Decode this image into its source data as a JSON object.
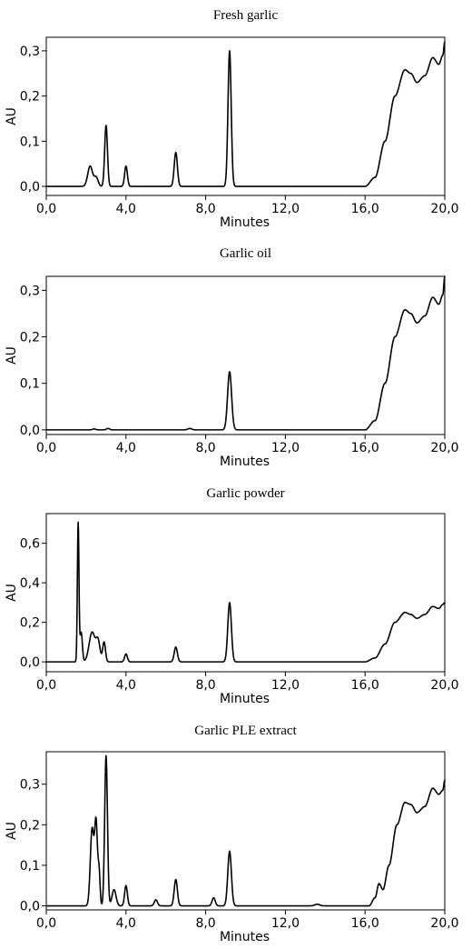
{
  "chart_data": [
    {
      "type": "line",
      "title": "Fresh garlic",
      "xlabel": "Minutes",
      "ylabel": "AU",
      "xlim": [
        0,
        20
      ],
      "ylim": [
        -0.02,
        0.33
      ],
      "xticks": [
        0,
        4,
        8,
        12,
        16,
        20
      ],
      "xtick_labels": [
        "0,0",
        "4,0",
        "8,0",
        "12,0",
        "16,0",
        "20,0"
      ],
      "yticks": [
        0,
        0.1,
        0.2,
        0.3
      ],
      "ytick_labels": [
        "0,0",
        "0,1",
        "0,2",
        "0,3"
      ],
      "grid": false,
      "baseline": 0,
      "peaks": [
        {
          "t": 2.2,
          "h": 0.045,
          "w": 0.12
        },
        {
          "t": 2.5,
          "h": 0.02,
          "w": 0.1
        },
        {
          "t": 3.0,
          "h": 0.135,
          "w": 0.07
        },
        {
          "t": 4.0,
          "h": 0.045,
          "w": 0.07
        },
        {
          "t": 6.5,
          "h": 0.075,
          "w": 0.08
        },
        {
          "t": 9.2,
          "h": 0.3,
          "w": 0.08
        }
      ],
      "tail": [
        [
          16.0,
          0.0
        ],
        [
          16.5,
          0.02
        ],
        [
          17.0,
          0.1
        ],
        [
          17.5,
          0.2
        ],
        [
          18.0,
          0.258
        ],
        [
          18.3,
          0.25
        ],
        [
          18.6,
          0.23
        ],
        [
          19.0,
          0.245
        ],
        [
          19.4,
          0.285
        ],
        [
          19.7,
          0.27
        ],
        [
          19.9,
          0.29
        ],
        [
          20.0,
          0.32
        ]
      ]
    },
    {
      "type": "line",
      "title": "Garlic oil",
      "xlabel": "Minutes",
      "ylabel": "AU",
      "xlim": [
        0,
        20
      ],
      "ylim": [
        -0.01,
        0.33
      ],
      "xticks": [
        0,
        4,
        8,
        12,
        16,
        20
      ],
      "xtick_labels": [
        "0,0",
        "4,0",
        "8,0",
        "12,0",
        "16,0",
        "20,0"
      ],
      "yticks": [
        0,
        0.1,
        0.2,
        0.3
      ],
      "ytick_labels": [
        "0,0",
        "0,1",
        "0,2",
        "0,3"
      ],
      "grid": false,
      "baseline": 0,
      "peaks": [
        {
          "t": 2.4,
          "h": 0.002,
          "w": 0.08
        },
        {
          "t": 3.1,
          "h": 0.003,
          "w": 0.08
        },
        {
          "t": 7.2,
          "h": 0.003,
          "w": 0.1
        },
        {
          "t": 9.2,
          "h": 0.125,
          "w": 0.1
        }
      ],
      "tail": [
        [
          16.0,
          0.0
        ],
        [
          16.5,
          0.02
        ],
        [
          17.0,
          0.1
        ],
        [
          17.5,
          0.2
        ],
        [
          18.0,
          0.258
        ],
        [
          18.3,
          0.25
        ],
        [
          18.6,
          0.23
        ],
        [
          19.0,
          0.245
        ],
        [
          19.4,
          0.285
        ],
        [
          19.7,
          0.27
        ],
        [
          19.9,
          0.29
        ],
        [
          20.0,
          0.33
        ]
      ]
    },
    {
      "type": "line",
      "title": "Garlic powder",
      "xlabel": "Minutes",
      "ylabel": "AU",
      "xlim": [
        0,
        20
      ],
      "ylim": [
        -0.05,
        0.75
      ],
      "xticks": [
        0,
        4,
        8,
        12,
        16,
        20
      ],
      "xtick_labels": [
        "0,0",
        "4,0",
        "8,0",
        "12,0",
        "16,0",
        "20,0"
      ],
      "yticks": [
        0,
        0.2,
        0.4,
        0.6
      ],
      "ytick_labels": [
        "0,0",
        "0,2",
        "0,4",
        "0,6"
      ],
      "grid": false,
      "baseline": 0,
      "peaks": [
        {
          "t": 1.6,
          "h": 0.7,
          "w": 0.04
        },
        {
          "t": 1.75,
          "h": 0.15,
          "w": 0.06
        },
        {
          "t": 2.3,
          "h": 0.15,
          "w": 0.15
        },
        {
          "t": 2.6,
          "h": 0.1,
          "w": 0.1
        },
        {
          "t": 2.9,
          "h": 0.1,
          "w": 0.07
        },
        {
          "t": 4.0,
          "h": 0.04,
          "w": 0.07
        },
        {
          "t": 6.5,
          "h": 0.075,
          "w": 0.08
        },
        {
          "t": 9.2,
          "h": 0.3,
          "w": 0.09
        }
      ],
      "tail": [
        [
          16.0,
          0.0
        ],
        [
          16.5,
          0.02
        ],
        [
          17.0,
          0.09
        ],
        [
          17.5,
          0.2
        ],
        [
          18.0,
          0.25
        ],
        [
          18.3,
          0.24
        ],
        [
          18.6,
          0.22
        ],
        [
          19.0,
          0.24
        ],
        [
          19.4,
          0.28
        ],
        [
          19.7,
          0.27
        ],
        [
          19.9,
          0.29
        ],
        [
          20.0,
          0.3
        ]
      ]
    },
    {
      "type": "line",
      "title": "Garlic PLE extract",
      "xlabel": "Minutes",
      "ylabel": "AU",
      "xlim": [
        0,
        20
      ],
      "ylim": [
        -0.01,
        0.38
      ],
      "xticks": [
        0,
        4,
        8,
        12,
        16,
        20
      ],
      "xtick_labels": [
        "0,0",
        "4,0",
        "8,0",
        "12,0",
        "16,0",
        "20,0"
      ],
      "yticks": [
        0,
        0.1,
        0.2,
        0.3
      ],
      "ytick_labels": [
        "0,0",
        "0,1",
        "0,2",
        "0,3"
      ],
      "grid": false,
      "baseline": 0,
      "peaks": [
        {
          "t": 2.3,
          "h": 0.19,
          "w": 0.09
        },
        {
          "t": 2.5,
          "h": 0.2,
          "w": 0.07
        },
        {
          "t": 2.65,
          "h": 0.08,
          "w": 0.05
        },
        {
          "t": 3.0,
          "h": 0.37,
          "w": 0.07
        },
        {
          "t": 3.4,
          "h": 0.04,
          "w": 0.1
        },
        {
          "t": 4.0,
          "h": 0.05,
          "w": 0.07
        },
        {
          "t": 5.5,
          "h": 0.015,
          "w": 0.08
        },
        {
          "t": 6.5,
          "h": 0.065,
          "w": 0.08
        },
        {
          "t": 8.4,
          "h": 0.02,
          "w": 0.08
        },
        {
          "t": 9.2,
          "h": 0.135,
          "w": 0.09
        },
        {
          "t": 13.6,
          "h": 0.004,
          "w": 0.12
        }
      ],
      "tail": [
        [
          16.2,
          0.0
        ],
        [
          16.5,
          0.02
        ],
        [
          16.7,
          0.055
        ],
        [
          16.9,
          0.04
        ],
        [
          17.2,
          0.1
        ],
        [
          17.6,
          0.2
        ],
        [
          18.0,
          0.255
        ],
        [
          18.3,
          0.25
        ],
        [
          18.6,
          0.23
        ],
        [
          19.0,
          0.245
        ],
        [
          19.4,
          0.29
        ],
        [
          19.7,
          0.275
        ],
        [
          19.9,
          0.285
        ],
        [
          20.0,
          0.31
        ]
      ]
    }
  ]
}
